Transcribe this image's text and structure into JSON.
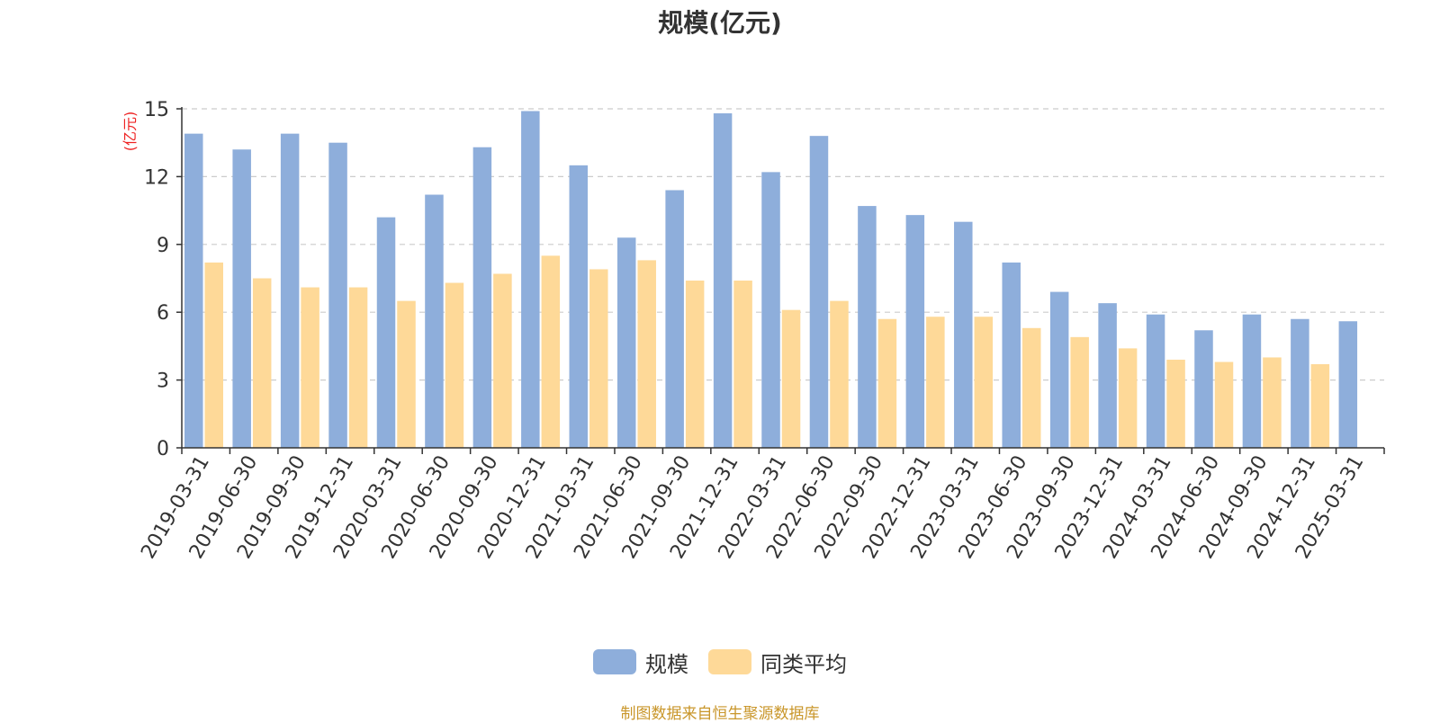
{
  "chart_data": {
    "type": "bar",
    "title": "规模(亿元)",
    "ylabel": "(亿元)",
    "xlabel": "",
    "ylim": [
      0,
      15
    ],
    "yticks": [
      0,
      3,
      6,
      9,
      12,
      15
    ],
    "grid": true,
    "legend_position": "bottom",
    "categories": [
      "2019-03-31",
      "2019-06-30",
      "2019-09-30",
      "2019-12-31",
      "2020-03-31",
      "2020-06-30",
      "2020-09-30",
      "2020-12-31",
      "2021-03-31",
      "2021-06-30",
      "2021-09-30",
      "2021-12-31",
      "2022-03-31",
      "2022-06-30",
      "2022-09-30",
      "2022-12-31",
      "2023-03-31",
      "2023-06-30",
      "2023-09-30",
      "2023-12-31",
      "2024-03-31",
      "2024-06-30",
      "2024-09-30",
      "2024-12-31",
      "2025-03-31"
    ],
    "series": [
      {
        "name": "规模",
        "color": "#8eaedb",
        "values": [
          13.9,
          13.2,
          13.9,
          13.5,
          10.2,
          11.2,
          13.3,
          14.9,
          12.5,
          9.3,
          11.4,
          14.8,
          12.2,
          13.8,
          10.7,
          10.3,
          10.0,
          8.2,
          6.9,
          6.4,
          5.9,
          5.2,
          5.9,
          5.7,
          5.6
        ]
      },
      {
        "name": "同类平均",
        "color": "#fed998",
        "values": [
          8.2,
          7.5,
          7.1,
          7.1,
          6.5,
          7.3,
          7.7,
          8.5,
          7.9,
          8.3,
          7.4,
          7.4,
          6.1,
          6.5,
          5.7,
          5.8,
          5.8,
          5.3,
          4.9,
          4.4,
          3.9,
          3.8,
          4.0,
          3.7,
          null
        ]
      }
    ],
    "source_note": "制图数据来自恒生聚源数据库"
  }
}
